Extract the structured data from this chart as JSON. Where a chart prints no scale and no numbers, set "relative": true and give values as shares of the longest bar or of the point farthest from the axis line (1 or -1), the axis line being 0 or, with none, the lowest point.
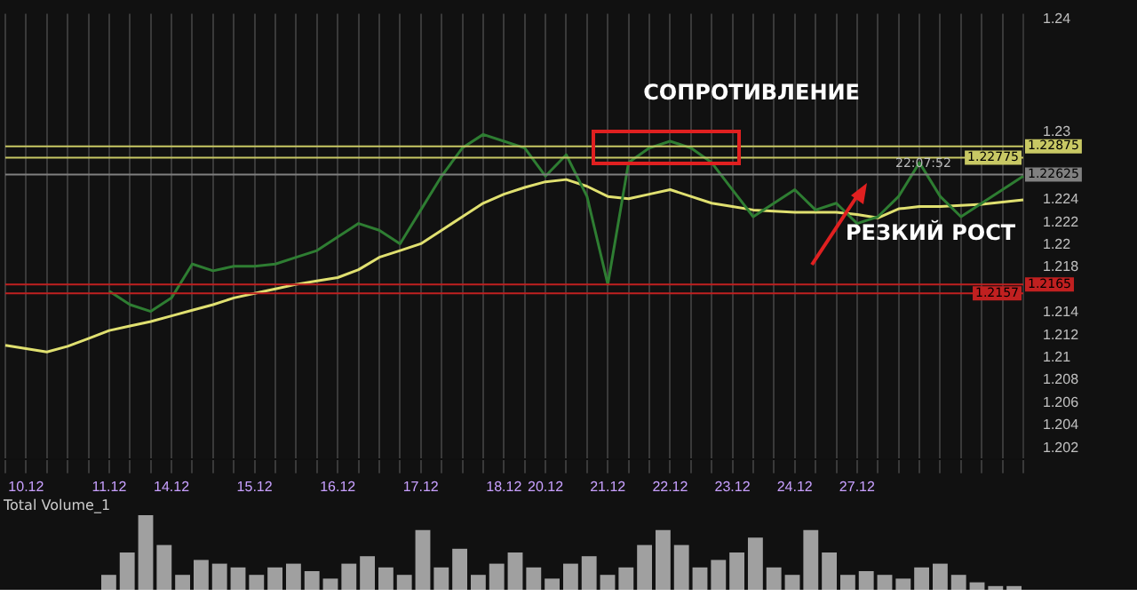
{
  "chart_data": [
    {
      "type": "line",
      "categories": [
        null,
        "10.12",
        null,
        null,
        null,
        "11.12",
        null,
        null,
        "14.12",
        null,
        null,
        null,
        "15.12",
        null,
        null,
        null,
        "16.12",
        null,
        null,
        null,
        "17.12",
        null,
        null,
        null,
        "18.12",
        null,
        "20.12",
        null,
        null,
        "21.12",
        null,
        null,
        "22.12",
        null,
        null,
        "23.12",
        null,
        null,
        "24.12",
        null,
        null,
        "27.12",
        null,
        null,
        null,
        null,
        null,
        null,
        null,
        null
      ],
      "series": [
        {
          "color": "#2e7d32",
          "values": [
            null,
            null,
            null,
            null,
            null,
            1.2159,
            1.2147,
            1.2141,
            1.2153,
            1.2183,
            1.2177,
            1.2181,
            1.2181,
            1.2183,
            1.2189,
            1.2195,
            1.2207,
            1.2219,
            1.2213,
            1.2201,
            1.2231,
            1.2261,
            1.2286,
            1.2298,
            1.2292,
            1.2286,
            1.2261,
            1.228,
            1.2243,
            1.2165,
            1.2273,
            1.2286,
            1.2292,
            1.2286,
            1.2273,
            1.2249,
            1.2225,
            1.2237,
            1.2249,
            1.2231,
            1.2237,
            1.2219,
            1.2225,
            1.2243,
            1.2273,
            1.2243,
            1.2225,
            1.2237,
            1.2249,
            1.2261
          ]
        },
        {
          "color": "#e0e070",
          "values": [
            1.2111,
            1.2108,
            1.2105,
            1.211,
            1.2117,
            1.2124,
            1.2128,
            1.2132,
            1.2137,
            1.2142,
            1.2147,
            1.2153,
            1.2157,
            1.2161,
            1.2165,
            1.2168,
            1.2171,
            1.2178,
            1.2189,
            1.2195,
            1.2201,
            1.2213,
            1.2225,
            1.2237,
            1.2245,
            1.2251,
            1.2256,
            1.2258,
            1.2252,
            1.2243,
            1.2241,
            1.2245,
            1.2249,
            1.2243,
            1.2237,
            1.2234,
            1.2231,
            1.223,
            1.2229,
            1.2229,
            1.2229,
            1.2227,
            1.2224,
            1.2232,
            1.2234,
            1.2234,
            1.2235,
            1.2236,
            1.2238,
            1.224
          ]
        }
      ],
      "ylim": [
        1.201,
        1.2405
      ],
      "yticks": [
        1.202,
        1.204,
        1.206,
        1.208,
        1.21,
        1.212,
        1.214,
        1.218,
        1.22,
        1.222,
        1.224,
        1.23,
        1.24
      ],
      "grid": "x",
      "legend": false,
      "marker": "none",
      "ref_lines": [
        {
          "axis": "y",
          "value": 1.22875,
          "label": "1.22875",
          "color": "#c8c864"
        },
        {
          "axis": "y",
          "value": 1.22775,
          "label": "1.22775",
          "color": "#c8c864"
        },
        {
          "axis": "y",
          "value": 1.22625,
          "label": "1.22625",
          "color": "#808080"
        },
        {
          "axis": "y",
          "value": 1.2165,
          "label": "1.2165",
          "color": "#c02020"
        },
        {
          "axis": "y",
          "value": 1.2157,
          "label": "1.2157",
          "color": "#c02020"
        }
      ],
      "annotations": [
        {
          "text": "СОПРОТИВЛЕНИЕ",
          "x": "21.12",
          "y": 1.2292
        },
        "РЕЗКИЙ РОСТ",
        {
          "text": "22:07:52",
          "y": 1.22625
        }
      ]
    },
    {
      "type": "bar",
      "title": "Total Volume_1",
      "relative": true,
      "color": "#a0a0a0",
      "categories": [
        null,
        null,
        null,
        null,
        null,
        null,
        null,
        null,
        null,
        null,
        null,
        null,
        null,
        null,
        null,
        null,
        null,
        null,
        null,
        null,
        null,
        null,
        null,
        null,
        null,
        null,
        null,
        null,
        null,
        null,
        null,
        null,
        null,
        null,
        null,
        null,
        null,
        null,
        null,
        null,
        null,
        null,
        null,
        null,
        null,
        null,
        null,
        null,
        null,
        null
      ],
      "values": [
        0.2,
        0.5,
        1,
        0.6,
        0.2,
        0.4,
        0.35,
        0.3,
        0.2,
        0.3,
        0.35,
        0.25,
        0.15,
        0.35,
        0.45,
        0.3,
        0.2,
        0.8,
        0.3,
        0.55,
        0.2,
        0.35,
        0.5,
        0.3,
        0.15,
        0.35,
        0.45,
        0.2,
        0.3,
        0.6,
        0.8,
        0.6,
        0.3,
        0.4,
        0.5,
        0.7,
        0.3,
        0.2,
        0.8,
        0.5,
        0.2,
        0.25,
        0.2,
        0.15,
        0.3,
        0.35,
        0.2,
        0.1,
        0.05,
        0.05
      ]
    }
  ]
}
